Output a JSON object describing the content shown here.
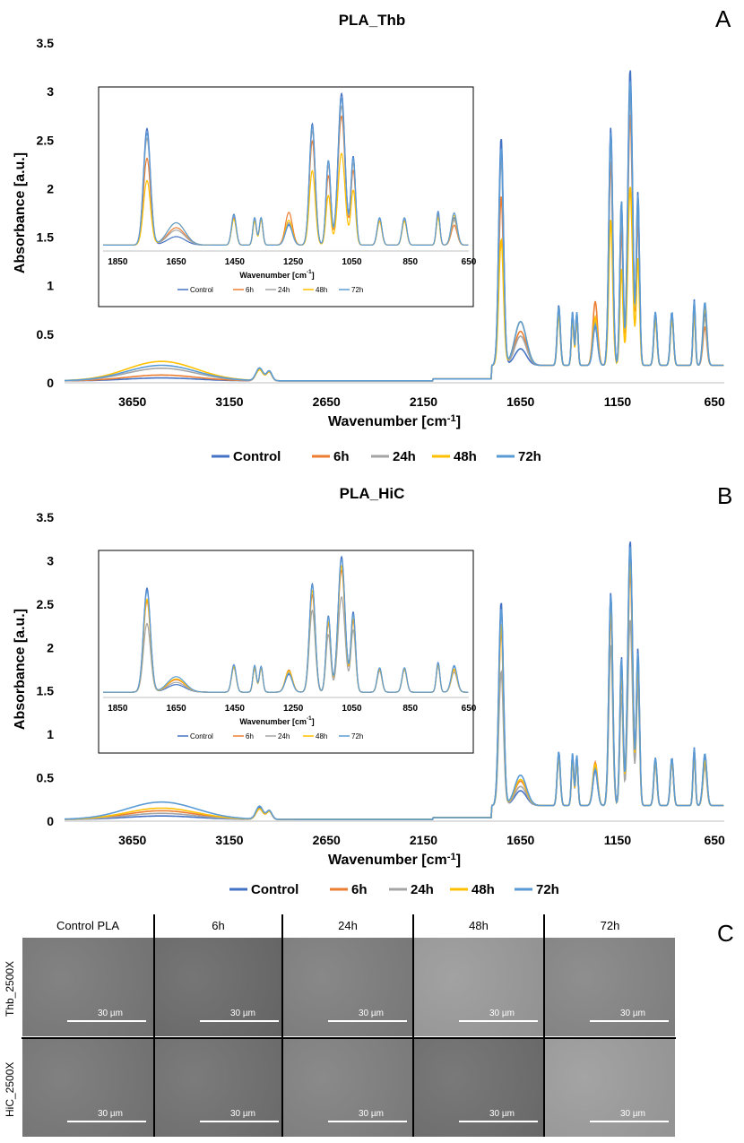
{
  "panels": [
    {
      "letter": "A",
      "title": "PLA_Thb",
      "xlabel": "Wavenumber [cm⁻¹]",
      "ylabel": "Absorbance [a.u.]",
      "xticks": [
        "3650",
        "3150",
        "2650",
        "2150",
        "1650",
        "1150",
        "650"
      ],
      "yticks": [
        "0",
        "0.5",
        "1",
        "1.5",
        "2",
        "2.5",
        "3",
        "3.5"
      ],
      "inset_xticks": [
        "1850",
        "1650",
        "1450",
        "1250",
        "1050",
        "850",
        "650"
      ],
      "inset_xlabel": "Wavenumber [cm⁻¹]"
    },
    {
      "letter": "B",
      "title": "PLA_HiC",
      "xlabel": "Wavenumber [cm⁻¹]",
      "ylabel": "Absorbance [a.u.]",
      "xticks": [
        "3650",
        "3150",
        "2650",
        "2150",
        "1650",
        "1150",
        "650"
      ],
      "yticks": [
        "0",
        "0.5",
        "1",
        "1.5",
        "2",
        "2.5",
        "3",
        "3.5"
      ],
      "inset_xticks": [
        "1850",
        "1650",
        "1450",
        "1250",
        "1050",
        "850",
        "650"
      ],
      "inset_xlabel": "Wavenumber [cm⁻¹]"
    }
  ],
  "legend": [
    "Control",
    "6h",
    "24h",
    "48h",
    "72h"
  ],
  "colors": {
    "Control": "#4472c4",
    "6h": "#ed7d31",
    "24h": "#a5a5a5",
    "48h": "#ffc000",
    "72h": "#5b9bd5"
  },
  "chart_data": [
    {
      "type": "line",
      "title": "PLA_Thb",
      "xlabel": "Wavenumber [cm-1]",
      "ylabel": "Absorbance [a.u.]",
      "xlim": [
        4000,
        600
      ],
      "ylim": [
        0,
        3.5
      ],
      "peaks": {
        "x": [
          3500,
          2995,
          2945,
          1750,
          1650,
          1453,
          1382,
          1360,
          1265,
          1185,
          1130,
          1085,
          1045,
          955,
          870,
          755,
          700
        ],
        "series": [
          {
            "name": "Control",
            "values": [
              0.03,
              0.13,
              0.1,
              2.35,
              0.17,
              0.62,
              0.55,
              0.55,
              0.4,
              2.45,
              1.7,
              3.06,
              1.78,
              0.55,
              0.55,
              0.68,
              0.55
            ]
          },
          {
            "name": "6h",
            "values": [
              0.06,
              0.12,
              0.09,
              1.75,
              0.35,
              0.55,
              0.5,
              0.52,
              0.66,
              2.1,
              1.4,
              2.6,
              1.5,
              0.48,
              0.5,
              0.6,
              0.4
            ]
          },
          {
            "name": "24h",
            "values": [
              0.13,
              0.12,
              0.09,
              2.15,
              0.3,
              0.6,
              0.52,
              0.54,
              0.45,
              2.3,
              1.6,
              2.8,
              1.65,
              0.52,
              0.52,
              0.64,
              0.5
            ]
          },
          {
            "name": "48h",
            "values": [
              0.2,
              0.11,
              0.09,
              1.3,
              0.45,
              0.52,
              0.48,
              0.5,
              0.5,
              1.5,
              1.0,
              1.85,
              1.1,
              0.48,
              0.48,
              0.55,
              0.6
            ]
          },
          {
            "name": "72h",
            "values": [
              0.16,
              0.13,
              0.1,
              2.25,
              0.45,
              0.6,
              0.55,
              0.55,
              0.42,
              2.4,
              1.7,
              2.95,
              1.75,
              0.55,
              0.55,
              0.66,
              0.65
            ]
          }
        ]
      }
    },
    {
      "type": "line",
      "title": "PLA_HiC",
      "xlabel": "Wavenumber [cm-1]",
      "ylabel": "Absorbance [a.u.]",
      "xlim": [
        4000,
        600
      ],
      "ylim": [
        0,
        3.5
      ],
      "peaks": {
        "x": [
          3500,
          2995,
          2945,
          1750,
          1650,
          1453,
          1382,
          1360,
          1265,
          1185,
          1130,
          1085,
          1045,
          955,
          870,
          755,
          700
        ],
        "series": [
          {
            "name": "Control",
            "values": [
              0.04,
              0.14,
              0.1,
              2.35,
              0.17,
              0.62,
              0.6,
              0.58,
              0.4,
              2.45,
              1.72,
              3.06,
              1.8,
              0.55,
              0.55,
              0.67,
              0.58
            ]
          },
          {
            "name": "6h",
            "values": [
              0.1,
              0.12,
              0.09,
              2.05,
              0.28,
              0.58,
              0.55,
              0.55,
              0.5,
              2.2,
              1.55,
              2.75,
              1.6,
              0.5,
              0.52,
              0.62,
              0.5
            ]
          },
          {
            "name": "24h",
            "values": [
              0.07,
              0.12,
              0.09,
              1.55,
              0.22,
              0.55,
              0.52,
              0.52,
              0.45,
              1.85,
              1.3,
              2.15,
              1.4,
              0.48,
              0.5,
              0.58,
              0.45
            ]
          },
          {
            "name": "48h",
            "values": [
              0.13,
              0.12,
              0.09,
              2.1,
              0.3,
              0.58,
              0.55,
              0.55,
              0.48,
              2.3,
              1.6,
              2.85,
              1.65,
              0.52,
              0.52,
              0.62,
              0.52
            ]
          },
          {
            "name": "72h",
            "values": [
              0.2,
              0.15,
              0.1,
              2.28,
              0.35,
              0.62,
              0.6,
              0.58,
              0.42,
              2.42,
              1.7,
              3.0,
              1.75,
              0.55,
              0.55,
              0.66,
              0.6
            ]
          }
        ]
      }
    }
  ],
  "sem": {
    "letter": "C",
    "columns": [
      "Control PLA",
      "6h",
      "24h",
      "48h",
      "72h"
    ],
    "rows": [
      {
        "label": "Thb_2500X",
        "tones": [
          "#787878",
          "#6a6a6a",
          "#7e7e7e",
          "#9a9a9a",
          "#858585"
        ]
      },
      {
        "label": "HiC_2500X",
        "tones": [
          "#767676",
          "#707070",
          "#808080",
          "#6e6e6e",
          "#9c9c9c"
        ]
      }
    ],
    "scale_label": "30 µm"
  }
}
